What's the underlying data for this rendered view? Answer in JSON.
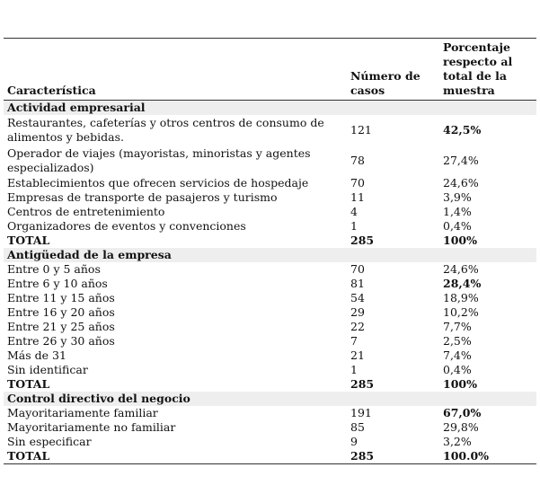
{
  "headers": {
    "c1": "Característica",
    "c2": "Número de casos",
    "c3": "Porcentaje respecto al total de la muestra"
  },
  "sections": [
    {
      "title": "Actividad empresarial",
      "rows": [
        {
          "label": "Restaurantes, cafeterías y otros centros de consumo de alimentos y bebidas.",
          "n": "121",
          "pct": "42,5%",
          "bold": true
        },
        {
          "label": "Operador de viajes (mayoristas, minoristas y agentes especializados)",
          "n": "78",
          "pct": "27,4%"
        },
        {
          "label": "Establecimientos que ofrecen servicios de hospedaje",
          "n": "70",
          "pct": "24,6%"
        },
        {
          "label": "Empresas de transporte de pasajeros y turismo",
          "n": "11",
          "pct": "3,9%"
        },
        {
          "label": "Centros de entretenimiento",
          "n": "4",
          "pct": "1,4%"
        },
        {
          "label": "Organizadores de eventos y convenciones",
          "n": "1",
          "pct": "0,4%"
        }
      ],
      "total": {
        "label": "TOTAL",
        "n": "285",
        "pct": "100%"
      }
    },
    {
      "title": "Antigüedad de la empresa",
      "rows": [
        {
          "label": "Entre 0 y 5 años",
          "n": "70",
          "pct": "24,6%"
        },
        {
          "label": "Entre 6 y 10 años",
          "n": "81",
          "pct": "28,4%",
          "bold": true
        },
        {
          "label": "Entre 11 y 15 años",
          "n": "54",
          "pct": "18,9%"
        },
        {
          "label": "Entre 16 y 20 años",
          "n": "29",
          "pct": "10,2%"
        },
        {
          "label": "Entre 21 y 25 años",
          "n": "22",
          "pct": "7,7%"
        },
        {
          "label": "Entre 26 y 30 años",
          "n": "7",
          "pct": "2,5%"
        },
        {
          "label": "Más de 31",
          "n": "21",
          "pct": "7,4%"
        },
        {
          "label": "Sin identificar",
          "n": "1",
          "pct": "0,4%"
        }
      ],
      "total": {
        "label": "TOTAL",
        "n": "285",
        "pct": "100%"
      }
    },
    {
      "title": "Control directivo del negocio",
      "rows": [
        {
          "label": "Mayoritariamente familiar",
          "n": "191",
          "pct": "67,0%",
          "bold": true
        },
        {
          "label": "Mayoritariamente no familiar",
          "n": "85",
          "pct": "29,8%"
        },
        {
          "label": "Sin especificar",
          "n": "9",
          "pct": "3,2%"
        }
      ],
      "total": {
        "label": "TOTAL",
        "n": "285",
        "pct": "100.0%"
      }
    }
  ]
}
